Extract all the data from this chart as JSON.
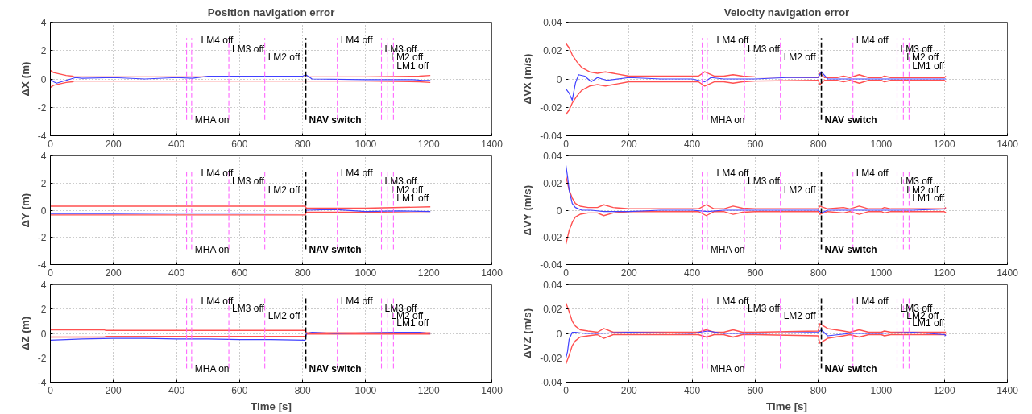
{
  "chart_data": [
    {
      "type": "line",
      "title": "Position navigation error",
      "ylabel": "ΔX (m)",
      "xlim": [
        0,
        1400
      ],
      "xticks": [
        0,
        200,
        400,
        600,
        800,
        1000,
        1200,
        1400
      ],
      "ylim": [
        -4,
        4
      ],
      "yticks": [
        -4,
        -2,
        0,
        2,
        4
      ],
      "grid": true,
      "line_style": "solid",
      "series": [
        {
          "color": "#ff5050",
          "x": [
            0,
            10,
            30,
            50,
            70,
            75,
            200,
            400,
            600,
            800,
            810,
            1000,
            1170,
            1205
          ],
          "values": [
            0.6,
            0.45,
            0.35,
            0.25,
            0.2,
            0.15,
            0.15,
            0.15,
            0.15,
            0.15,
            0.15,
            0.15,
            0.2,
            0.25
          ]
        },
        {
          "color": "#ff5050",
          "x": [
            0,
            10,
            30,
            50,
            70,
            75,
            200,
            400,
            600,
            800,
            810,
            1000,
            1170,
            1205
          ],
          "values": [
            -0.6,
            -0.45,
            -0.35,
            -0.25,
            -0.2,
            -0.15,
            -0.15,
            -0.15,
            -0.15,
            -0.15,
            -0.15,
            -0.15,
            -0.2,
            -0.25
          ]
        },
        {
          "color": "#4040ff",
          "x": [
            0,
            10,
            20,
            50,
            80,
            100,
            200,
            300,
            400,
            450,
            500,
            600,
            700,
            800,
            810,
            830,
            1000,
            1150,
            1180,
            1205
          ],
          "values": [
            0,
            -0.2,
            -0.3,
            -0.1,
            0.1,
            0.05,
            0.1,
            0,
            0.1,
            0.05,
            0.2,
            0.2,
            0.2,
            0.2,
            0.3,
            0,
            -0.05,
            -0.05,
            -0.1,
            -0.1
          ]
        }
      ],
      "ref_lines": [
        {
          "axis": "x",
          "value": 432,
          "label": "LM4 off",
          "color": "#ff66ff",
          "line_style": "dashed"
        },
        {
          "axis": "x",
          "value": 448,
          "label": "MHA on",
          "color": "#ff66ff",
          "line_style": "dashed"
        },
        {
          "axis": "x",
          "value": 566,
          "label": "LM3 off",
          "color": "#ff66ff",
          "line_style": "dashed"
        },
        {
          "axis": "x",
          "value": 680,
          "label": "LM2 off",
          "color": "#ff66ff",
          "line_style": "dashed"
        },
        {
          "axis": "x",
          "value": 810,
          "label": "NAV switch",
          "color": "#000000",
          "line_style": "dashed"
        },
        {
          "axis": "x",
          "value": 910,
          "label": "LM4 off",
          "color": "#ff66ff",
          "line_style": "dashed"
        },
        {
          "axis": "x",
          "value": 1050,
          "label": "LM3 off",
          "color": "#ff66ff",
          "line_style": "dashed"
        },
        {
          "axis": "x",
          "value": 1070,
          "label": "LM2 off",
          "color": "#ff66ff",
          "line_style": "dashed"
        },
        {
          "axis": "x",
          "value": 1088,
          "label": "LM1 off",
          "color": "#ff66ff",
          "line_style": "dashed"
        }
      ]
    },
    {
      "type": "line",
      "title": "Velocity navigation error",
      "ylabel": "ΔVX (m/s)",
      "xlim": [
        0,
        1400
      ],
      "xticks": [
        0,
        200,
        400,
        600,
        800,
        1000,
        1200,
        1400
      ],
      "ylim": [
        -0.04,
        0.04
      ],
      "yticks": [
        -0.04,
        -0.02,
        0,
        0.02,
        0.04
      ],
      "grid": true,
      "line_style": "solid",
      "series": [
        {
          "color": "#ff5050",
          "x": [
            0,
            10,
            20,
            35,
            50,
            75,
            100,
            125,
            150,
            200,
            300,
            420,
            440,
            470,
            500,
            530,
            560,
            600,
            800,
            805,
            820,
            860,
            880,
            900,
            930,
            960,
            1000,
            1010,
            1030,
            1200,
            1205
          ],
          "values": [
            0.025,
            0.022,
            0.017,
            0.012,
            0.008,
            0.005,
            0.004,
            0.005,
            0.004,
            0.002,
            0.002,
            0.002,
            0.005,
            0.002,
            0.002,
            0.003,
            0.002,
            0.0015,
            0.001,
            0.004,
            0.001,
            0.001,
            0.002,
            0.001,
            0.003,
            0.001,
            0.001,
            0.002,
            0.001,
            0.001,
            0.002
          ]
        },
        {
          "color": "#ff5050",
          "x": [
            0,
            10,
            20,
            35,
            50,
            75,
            100,
            125,
            150,
            200,
            300,
            420,
            440,
            470,
            500,
            530,
            560,
            600,
            800,
            805,
            820,
            860,
            880,
            900,
            930,
            960,
            1000,
            1010,
            1030,
            1200,
            1205
          ],
          "values": [
            -0.025,
            -0.022,
            -0.017,
            -0.012,
            -0.008,
            -0.005,
            -0.004,
            -0.005,
            -0.004,
            -0.002,
            -0.002,
            -0.002,
            -0.005,
            -0.002,
            -0.002,
            -0.003,
            -0.002,
            -0.0015,
            -0.001,
            -0.004,
            -0.001,
            -0.001,
            -0.002,
            -0.001,
            -0.003,
            -0.001,
            -0.001,
            -0.002,
            -0.001,
            -0.001,
            -0.002
          ]
        },
        {
          "color": "#4040ff",
          "x": [
            0,
            10,
            20,
            30,
            40,
            60,
            80,
            100,
            130,
            200,
            300,
            400,
            440,
            460,
            500,
            530,
            600,
            700,
            800,
            810,
            830,
            900,
            1000,
            1200,
            1205
          ],
          "values": [
            -0.007,
            -0.01,
            -0.015,
            -0.003,
            0.003,
            0.002,
            -0.002,
            0.001,
            -0.001,
            0.001,
            0,
            0,
            -0.002,
            0.001,
            0,
            0,
            0,
            0.001,
            0.001,
            0.005,
            0,
            0,
            0,
            0,
            0
          ]
        }
      ],
      "ref_lines": [
        {
          "axis": "x",
          "value": 432,
          "label": "LM4 off",
          "color": "#ff66ff",
          "line_style": "dashed"
        },
        {
          "axis": "x",
          "value": 448,
          "label": "MHA on",
          "color": "#ff66ff",
          "line_style": "dashed"
        },
        {
          "axis": "x",
          "value": 566,
          "label": "LM3 off",
          "color": "#ff66ff",
          "line_style": "dashed"
        },
        {
          "axis": "x",
          "value": 680,
          "label": "LM2 off",
          "color": "#ff66ff",
          "line_style": "dashed"
        },
        {
          "axis": "x",
          "value": 810,
          "label": "NAV switch",
          "color": "#000000",
          "line_style": "dashed"
        },
        {
          "axis": "x",
          "value": 910,
          "label": "LM4 off",
          "color": "#ff66ff",
          "line_style": "dashed"
        },
        {
          "axis": "x",
          "value": 1050,
          "label": "LM3 off",
          "color": "#ff66ff",
          "line_style": "dashed"
        },
        {
          "axis": "x",
          "value": 1070,
          "label": "LM2 off",
          "color": "#ff66ff",
          "line_style": "dashed"
        },
        {
          "axis": "x",
          "value": 1088,
          "label": "LM1 off",
          "color": "#ff66ff",
          "line_style": "dashed"
        }
      ]
    },
    {
      "type": "line",
      "ylabel": "ΔY (m)",
      "xlim": [
        0,
        1400
      ],
      "xticks": [
        0,
        200,
        400,
        600,
        800,
        1000,
        1200,
        1400
      ],
      "ylim": [
        -4,
        4
      ],
      "yticks": [
        -4,
        -2,
        0,
        2,
        4
      ],
      "grid": true,
      "line_style": "solid",
      "series": [
        {
          "color": "#ff5050",
          "x": [
            0,
            808,
            812,
            1000,
            1205
          ],
          "values": [
            0.3,
            0.3,
            0.15,
            0.15,
            0.25
          ]
        },
        {
          "color": "#ff5050",
          "x": [
            0,
            808,
            812,
            1000,
            1205
          ],
          "values": [
            -0.35,
            -0.35,
            -0.15,
            -0.15,
            -0.2
          ]
        },
        {
          "color": "#4040ff",
          "x": [
            0,
            200,
            400,
            600,
            808,
            812,
            900,
            1000,
            1100,
            1205
          ],
          "values": [
            -0.25,
            -0.25,
            -0.22,
            -0.22,
            -0.2,
            0,
            0.05,
            -0.1,
            -0.05,
            -0.1
          ]
        }
      ],
      "ref_lines": [
        {
          "axis": "x",
          "value": 432,
          "label": "LM4 off",
          "color": "#ff66ff",
          "line_style": "dashed"
        },
        {
          "axis": "x",
          "value": 448,
          "label": "MHA on",
          "color": "#ff66ff",
          "line_style": "dashed"
        },
        {
          "axis": "x",
          "value": 566,
          "label": "LM3 off",
          "color": "#ff66ff",
          "line_style": "dashed"
        },
        {
          "axis": "x",
          "value": 680,
          "label": "LM2 off",
          "color": "#ff66ff",
          "line_style": "dashed"
        },
        {
          "axis": "x",
          "value": 810,
          "label": "NAV switch",
          "color": "#000000",
          "line_style": "dashed"
        },
        {
          "axis": "x",
          "value": 910,
          "label": "LM4 off",
          "color": "#ff66ff",
          "line_style": "dashed"
        },
        {
          "axis": "x",
          "value": 1050,
          "label": "LM3 off",
          "color": "#ff66ff",
          "line_style": "dashed"
        },
        {
          "axis": "x",
          "value": 1070,
          "label": "LM2 off",
          "color": "#ff66ff",
          "line_style": "dashed"
        },
        {
          "axis": "x",
          "value": 1088,
          "label": "LM1 off",
          "color": "#ff66ff",
          "line_style": "dashed"
        }
      ]
    },
    {
      "type": "line",
      "ylabel": "ΔVY (m/s)",
      "xlim": [
        0,
        1400
      ],
      "xticks": [
        0,
        200,
        400,
        600,
        800,
        1000,
        1200,
        1400
      ],
      "ylim": [
        -0.04,
        0.04
      ],
      "yticks": [
        -0.04,
        -0.02,
        0,
        0.02,
        0.04
      ],
      "grid": true,
      "line_style": "solid",
      "series": [
        {
          "color": "#ff5050",
          "x": [
            0,
            10,
            20,
            30,
            45,
            70,
            100,
            120,
            150,
            200,
            420,
            445,
            470,
            500,
            530,
            560,
            600,
            800,
            805,
            830,
            880,
            900,
            930,
            960,
            1000,
            1010,
            1030,
            1200,
            1205
          ],
          "values": [
            0.025,
            0.015,
            0.009,
            0.005,
            0.003,
            0.002,
            0.002,
            0.004,
            0.002,
            0.001,
            0.001,
            0.004,
            0.001,
            0.001,
            0.003,
            0.0015,
            0.001,
            0.001,
            0.003,
            0.001,
            0.002,
            0.001,
            0.003,
            0.001,
            0.001,
            0.002,
            0.001,
            0.001,
            0.002
          ]
        },
        {
          "color": "#ff5050",
          "x": [
            0,
            10,
            20,
            30,
            45,
            70,
            100,
            120,
            150,
            200,
            420,
            445,
            470,
            500,
            530,
            560,
            600,
            800,
            805,
            830,
            880,
            900,
            930,
            960,
            1000,
            1010,
            1030,
            1200,
            1205
          ],
          "values": [
            -0.025,
            -0.015,
            -0.009,
            -0.005,
            -0.003,
            -0.002,
            -0.002,
            -0.004,
            -0.002,
            -0.001,
            -0.001,
            -0.004,
            -0.001,
            -0.001,
            -0.003,
            -0.0015,
            -0.001,
            -0.001,
            -0.003,
            -0.001,
            -0.002,
            -0.001,
            -0.003,
            -0.001,
            -0.001,
            -0.002,
            -0.001,
            -0.001,
            -0.002
          ]
        },
        {
          "color": "#4040ff",
          "x": [
            0,
            5,
            10,
            20,
            30,
            50,
            80,
            120,
            200,
            300,
            400,
            450,
            500,
            600,
            700,
            800,
            810,
            830,
            900,
            1000,
            1100,
            1205
          ],
          "values": [
            0.033,
            0.025,
            0.015,
            0.005,
            0.002,
            0,
            0,
            -0.001,
            -0.001,
            0,
            0,
            -0.001,
            0,
            0,
            0,
            0,
            -0.002,
            0,
            0,
            0,
            0,
            0.001
          ]
        }
      ],
      "ref_lines": [
        {
          "axis": "x",
          "value": 432,
          "label": "LM4 off",
          "color": "#ff66ff",
          "line_style": "dashed"
        },
        {
          "axis": "x",
          "value": 448,
          "label": "MHA on",
          "color": "#ff66ff",
          "line_style": "dashed"
        },
        {
          "axis": "x",
          "value": 566,
          "label": "LM3 off",
          "color": "#ff66ff",
          "line_style": "dashed"
        },
        {
          "axis": "x",
          "value": 680,
          "label": "LM2 off",
          "color": "#ff66ff",
          "line_style": "dashed"
        },
        {
          "axis": "x",
          "value": 810,
          "label": "NAV switch",
          "color": "#000000",
          "line_style": "dashed"
        },
        {
          "axis": "x",
          "value": 910,
          "label": "LM4 off",
          "color": "#ff66ff",
          "line_style": "dashed"
        },
        {
          "axis": "x",
          "value": 1050,
          "label": "LM3 off",
          "color": "#ff66ff",
          "line_style": "dashed"
        },
        {
          "axis": "x",
          "value": 1070,
          "label": "LM2 off",
          "color": "#ff66ff",
          "line_style": "dashed"
        },
        {
          "axis": "x",
          "value": 1088,
          "label": "LM1 off",
          "color": "#ff66ff",
          "line_style": "dashed"
        }
      ]
    },
    {
      "type": "line",
      "xlabel": "Time [s]",
      "ylabel": "ΔZ (m)",
      "xlim": [
        0,
        1400
      ],
      "xticks": [
        0,
        200,
        400,
        600,
        800,
        1000,
        1200,
        1400
      ],
      "ylim": [
        -4,
        4
      ],
      "yticks": [
        -4,
        -2,
        0,
        2,
        4
      ],
      "grid": true,
      "line_style": "solid",
      "series": [
        {
          "color": "#ff5050",
          "x": [
            0,
            170,
            175,
            808,
            812,
            1000,
            1205
          ],
          "values": [
            0.3,
            0.3,
            0.25,
            0.25,
            0.05,
            0.05,
            0.05
          ]
        },
        {
          "color": "#ff5050",
          "x": [
            0,
            170,
            175,
            808,
            812,
            1000,
            1205
          ],
          "values": [
            -0.3,
            -0.3,
            -0.25,
            -0.25,
            -0.05,
            -0.05,
            -0.05
          ]
        },
        {
          "color": "#4040ff",
          "x": [
            0,
            100,
            200,
            300,
            400,
            500,
            600,
            700,
            808,
            812,
            830,
            900,
            1000,
            1100,
            1170,
            1205
          ],
          "values": [
            -0.55,
            -0.45,
            -0.4,
            -0.4,
            -0.45,
            -0.45,
            -0.5,
            -0.5,
            -0.55,
            0,
            0.1,
            0,
            0.05,
            0.1,
            0.1,
            0
          ]
        }
      ],
      "ref_lines": [
        {
          "axis": "x",
          "value": 432,
          "label": "LM4 off",
          "color": "#ff66ff",
          "line_style": "dashed"
        },
        {
          "axis": "x",
          "value": 448,
          "label": "MHA on",
          "color": "#ff66ff",
          "line_style": "dashed"
        },
        {
          "axis": "x",
          "value": 566,
          "label": "LM3 off",
          "color": "#ff66ff",
          "line_style": "dashed"
        },
        {
          "axis": "x",
          "value": 680,
          "label": "LM2 off",
          "color": "#ff66ff",
          "line_style": "dashed"
        },
        {
          "axis": "x",
          "value": 810,
          "label": "NAV switch",
          "color": "#000000",
          "line_style": "dashed"
        },
        {
          "axis": "x",
          "value": 910,
          "label": "LM4 off",
          "color": "#ff66ff",
          "line_style": "dashed"
        },
        {
          "axis": "x",
          "value": 1050,
          "label": "LM3 off",
          "color": "#ff66ff",
          "line_style": "dashed"
        },
        {
          "axis": "x",
          "value": 1070,
          "label": "LM2 off",
          "color": "#ff66ff",
          "line_style": "dashed"
        },
        {
          "axis": "x",
          "value": 1088,
          "label": "LM1 off",
          "color": "#ff66ff",
          "line_style": "dashed"
        }
      ]
    },
    {
      "type": "line",
      "xlabel": "Time [s]",
      "ylabel": "ΔVZ (m/s)",
      "xlim": [
        0,
        1400
      ],
      "xticks": [
        0,
        200,
        400,
        600,
        800,
        1000,
        1200,
        1400
      ],
      "ylim": [
        -0.04,
        0.04
      ],
      "yticks": [
        -0.04,
        -0.02,
        0,
        0.02,
        0.04
      ],
      "grid": true,
      "line_style": "solid",
      "series": [
        {
          "color": "#ff5050",
          "x": [
            0,
            10,
            20,
            30,
            45,
            70,
            100,
            120,
            150,
            200,
            420,
            445,
            470,
            500,
            530,
            560,
            600,
            800,
            805,
            830,
            880,
            900,
            930,
            960,
            1000,
            1010,
            1030,
            1200,
            1205
          ],
          "values": [
            0.025,
            0.018,
            0.01,
            0.006,
            0.003,
            0.002,
            0.001,
            0.004,
            0.001,
            0.001,
            0.001,
            0.003,
            0.001,
            0.001,
            0.003,
            0.001,
            0.001,
            0.002,
            0.008,
            0.004,
            0.002,
            0.001,
            0.003,
            0.001,
            0.001,
            0.002,
            0.001,
            0.001,
            0.001
          ]
        },
        {
          "color": "#ff5050",
          "x": [
            0,
            10,
            20,
            30,
            45,
            70,
            100,
            120,
            150,
            200,
            420,
            445,
            470,
            500,
            530,
            560,
            600,
            800,
            805,
            830,
            880,
            900,
            930,
            960,
            1000,
            1010,
            1030,
            1200,
            1205
          ],
          "values": [
            -0.025,
            -0.018,
            -0.01,
            -0.006,
            -0.003,
            -0.002,
            -0.001,
            -0.004,
            -0.001,
            -0.001,
            -0.001,
            -0.003,
            -0.001,
            -0.001,
            -0.003,
            -0.001,
            -0.001,
            -0.002,
            -0.008,
            -0.004,
            -0.002,
            -0.001,
            -0.003,
            -0.001,
            -0.001,
            -0.002,
            -0.001,
            -0.001,
            -0.001
          ]
        },
        {
          "color": "#4040ff",
          "x": [
            0,
            5,
            10,
            20,
            30,
            60,
            100,
            200,
            400,
            450,
            500,
            600,
            800,
            810,
            830,
            900,
            1000,
            1100,
            1200,
            1205
          ],
          "values": [
            -0.02,
            -0.015,
            -0.005,
            0.001,
            0.001,
            0,
            0,
            0.001,
            0,
            0.002,
            0,
            0,
            0.001,
            0.003,
            -0.002,
            0,
            0,
            0.001,
            -0.001,
            -0.002
          ]
        }
      ],
      "ref_lines": [
        {
          "axis": "x",
          "value": 432,
          "label": "LM4 off",
          "color": "#ff66ff",
          "line_style": "dashed"
        },
        {
          "axis": "x",
          "value": 448,
          "label": "MHA on",
          "color": "#ff66ff",
          "line_style": "dashed"
        },
        {
          "axis": "x",
          "value": 566,
          "label": "LM3 off",
          "color": "#ff66ff",
          "line_style": "dashed"
        },
        {
          "axis": "x",
          "value": 680,
          "label": "LM2 off",
          "color": "#ff66ff",
          "line_style": "dashed"
        },
        {
          "axis": "x",
          "value": 810,
          "label": "NAV switch",
          "color": "#000000",
          "line_style": "dashed"
        },
        {
          "axis": "x",
          "value": 910,
          "label": "LM4 off",
          "color": "#ff66ff",
          "line_style": "dashed"
        },
        {
          "axis": "x",
          "value": 1050,
          "label": "LM3 off",
          "color": "#ff66ff",
          "line_style": "dashed"
        },
        {
          "axis": "x",
          "value": 1070,
          "label": "LM2 off",
          "color": "#ff66ff",
          "line_style": "dashed"
        },
        {
          "axis": "x",
          "value": 1088,
          "label": "LM1 off",
          "color": "#ff66ff",
          "line_style": "dashed"
        }
      ]
    }
  ]
}
